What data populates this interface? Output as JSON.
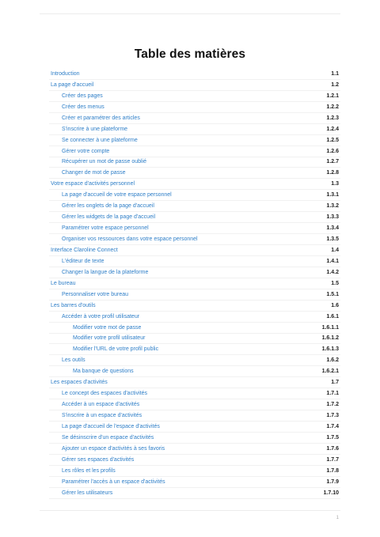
{
  "document": {
    "title": "Table des matières",
    "page_number": "1"
  },
  "toc": [
    {
      "label": "Introduction",
      "num": "1.1",
      "level": 1
    },
    {
      "label": "La page d'accueil",
      "num": "1.2",
      "level": 1
    },
    {
      "label": "Créer des pages",
      "num": "1.2.1",
      "level": 2
    },
    {
      "label": "Créer des menus",
      "num": "1.2.2",
      "level": 2
    },
    {
      "label": "Créer et paramétrer des articles",
      "num": "1.2.3",
      "level": 2
    },
    {
      "label": "S'inscrire à une plateforme",
      "num": "1.2.4",
      "level": 2
    },
    {
      "label": "Se connecter à une plateforme",
      "num": "1.2.5",
      "level": 2
    },
    {
      "label": "Gérer votre compte",
      "num": "1.2.6",
      "level": 2
    },
    {
      "label": "Récupérer un mot de passe oublié",
      "num": "1.2.7",
      "level": 2
    },
    {
      "label": "Changer de mot de passe",
      "num": "1.2.8",
      "level": 2
    },
    {
      "label": "Votre espace d'activités personnel",
      "num": "1.3",
      "level": 1
    },
    {
      "label": "La page d'accueil de votre espace personnel",
      "num": "1.3.1",
      "level": 2
    },
    {
      "label": "Gérer les onglets de la page d'accueil",
      "num": "1.3.2",
      "level": 2
    },
    {
      "label": "Gérer les widgets de la page d'accueil",
      "num": "1.3.3",
      "level": 2
    },
    {
      "label": "Paramétrer votre espace personnel",
      "num": "1.3.4",
      "level": 2
    },
    {
      "label": "Organiser vos ressources dans votre espace personnel",
      "num": "1.3.5",
      "level": 2
    },
    {
      "label": "Interface Claroline Connect",
      "num": "1.4",
      "level": 1
    },
    {
      "label": "L'éditeur de texte",
      "num": "1.4.1",
      "level": 2
    },
    {
      "label": "Changer la langue de la plateforme",
      "num": "1.4.2",
      "level": 2
    },
    {
      "label": "Le bureau",
      "num": "1.5",
      "level": 1
    },
    {
      "label": "Personnaliser votre bureau",
      "num": "1.5.1",
      "level": 2
    },
    {
      "label": "Les barres d'outils",
      "num": "1.6",
      "level": 1
    },
    {
      "label": "Accéder à votre profil utilisateur",
      "num": "1.6.1",
      "level": 2
    },
    {
      "label": "Modifier votre mot de passe",
      "num": "1.6.1.1",
      "level": 3
    },
    {
      "label": "Modifier votre profil utilisateur",
      "num": "1.6.1.2",
      "level": 3
    },
    {
      "label": "Modifier l'URL de votre profil public",
      "num": "1.6.1.3",
      "level": 3
    },
    {
      "label": "Les outils",
      "num": "1.6.2",
      "level": 2
    },
    {
      "label": "Ma banque de questions",
      "num": "1.6.2.1",
      "level": 3
    },
    {
      "label": "Les espaces d'activités",
      "num": "1.7",
      "level": 1
    },
    {
      "label": "Le concept des espaces d'activités",
      "num": "1.7.1",
      "level": 2
    },
    {
      "label": "Accéder à un espace d'activités",
      "num": "1.7.2",
      "level": 2
    },
    {
      "label": "S'inscrire à un espace d'activités",
      "num": "1.7.3",
      "level": 2
    },
    {
      "label": "La page d'accueil de l'espace d'activités",
      "num": "1.7.4",
      "level": 2
    },
    {
      "label": "Se désinscrire d'un espace d'activités",
      "num": "1.7.5",
      "level": 2
    },
    {
      "label": "Ajouter un espace d'activités à ses favoris",
      "num": "1.7.6",
      "level": 2
    },
    {
      "label": "Gérer ses espaces d'activités",
      "num": "1.7.7",
      "level": 2
    },
    {
      "label": "Les rôles et les profils",
      "num": "1.7.8",
      "level": 2
    },
    {
      "label": "Paramétrer l'accès à un espace d'activités",
      "num": "1.7.9",
      "level": 2
    },
    {
      "label": "Gérer les utilisateurs",
      "num": "1.7.10",
      "level": 2
    }
  ]
}
